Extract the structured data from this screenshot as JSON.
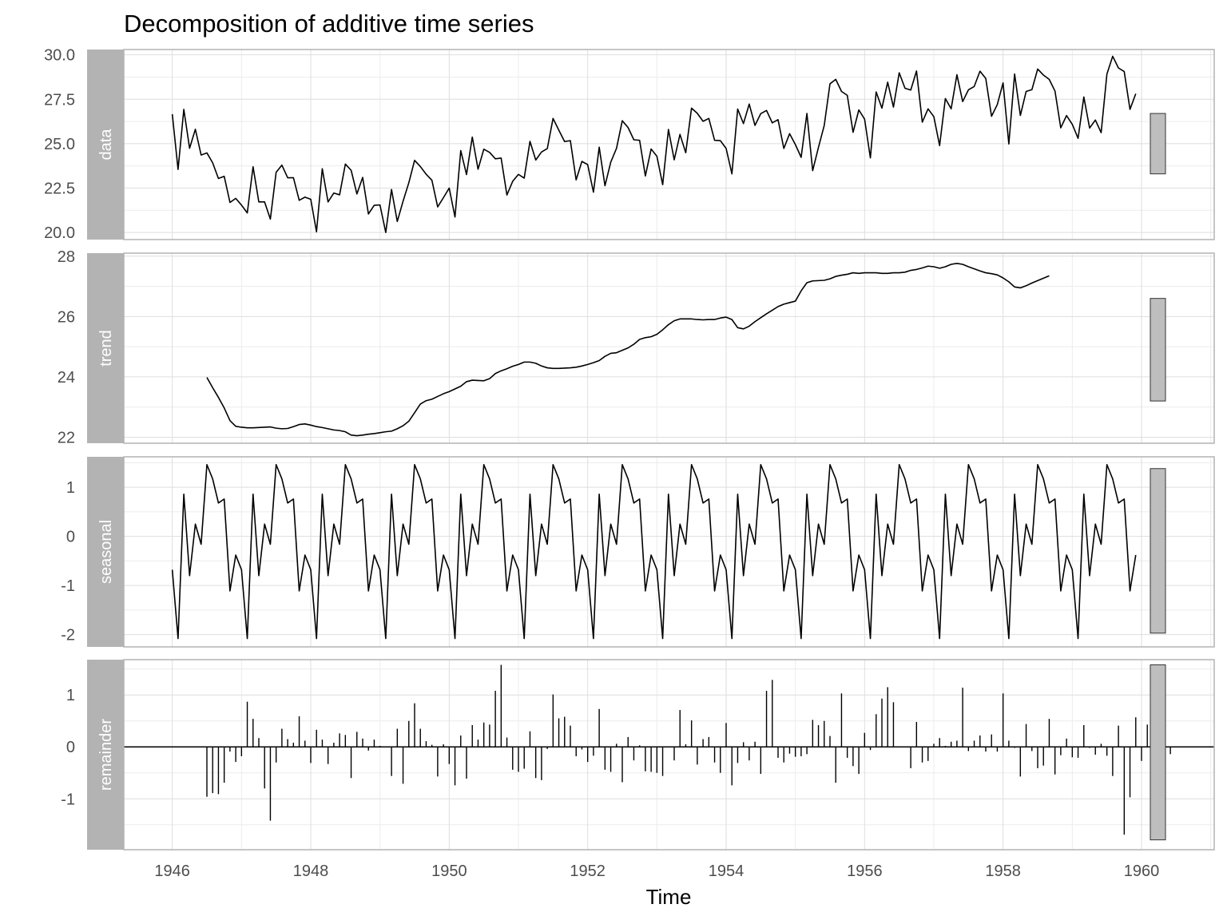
{
  "chart_data": {
    "type": "line",
    "title": "Decomposition of additive time series",
    "xlabel": "Time",
    "xlim": [
      1945.3,
      1961.05
    ],
    "x_ticks": [
      "1946",
      "1948",
      "1950",
      "1952",
      "1954",
      "1956",
      "1958",
      "1960"
    ],
    "start": 1946.0,
    "frequency": 12,
    "panels": [
      {
        "name": "data",
        "geom": "line",
        "ylim": [
          19.6,
          30.3
        ],
        "y_ticks": [
          20.0,
          22.5,
          25.0,
          27.5,
          30.0
        ],
        "y_tick_labels": [
          "20.0",
          "22.5",
          "25.0",
          "27.5",
          "30.0"
        ],
        "range_bar": [
          23.3,
          26.7
        ],
        "values": [
          26.66,
          23.55,
          26.93,
          24.74,
          25.81,
          24.36,
          24.48,
          23.92,
          23.04,
          23.16,
          21.69,
          21.92,
          21.54,
          21.1,
          23.7,
          21.72,
          21.72,
          20.75,
          23.39,
          23.79,
          23.08,
          23.08,
          21.81,
          21.99,
          21.87,
          20.04,
          23.59,
          21.72,
          22.22,
          22.12,
          23.85,
          23.5,
          22.17,
          23.1,
          21.04,
          21.53,
          21.55,
          20.0,
          22.42,
          20.62,
          21.76,
          22.8,
          24.06,
          23.71,
          23.28,
          22.94,
          21.44,
          21.96,
          22.5,
          20.87,
          24.61,
          23.26,
          25.37,
          23.56,
          24.69,
          24.51,
          24.15,
          24.19,
          22.11,
          22.88,
          23.27,
          23.06,
          25.13,
          24.08,
          24.53,
          24.72,
          26.42,
          25.76,
          25.12,
          25.17,
          22.96,
          24.0,
          23.82,
          22.27,
          24.8,
          22.63,
          23.96,
          24.74,
          26.29,
          25.91,
          25.22,
          25.19,
          23.18,
          24.7,
          24.29,
          22.69,
          25.8,
          24.09,
          25.52,
          24.49,
          27.0,
          26.71,
          26.26,
          26.42,
          25.19,
          25.17,
          24.73,
          23.3,
          26.95,
          26.13,
          27.23,
          26.03,
          26.69,
          26.87,
          26.17,
          26.35,
          24.73,
          25.56,
          24.95,
          24.23,
          26.7,
          23.48,
          24.79,
          26.02,
          28.37,
          28.62,
          27.94,
          27.72,
          25.64,
          26.9,
          26.38,
          24.2,
          27.91,
          27.0,
          28.46,
          27.06,
          28.99,
          28.12,
          28.02,
          29.09,
          26.21,
          26.96,
          26.52,
          24.89,
          27.54,
          26.96,
          28.88,
          27.37,
          28.03,
          28.22,
          29.08,
          28.67,
          26.54,
          27.2,
          28.42,
          24.98,
          28.92,
          26.59,
          27.94,
          28.04,
          29.2,
          28.86,
          28.62,
          27.96,
          25.89,
          26.58,
          26.09,
          25.3,
          27.63,
          25.88,
          26.33,
          25.62,
          28.92,
          29.92,
          29.26,
          29.06,
          26.93,
          27.81
        ]
      },
      {
        "name": "trend",
        "geom": "line",
        "ylim": [
          21.8,
          28.1
        ],
        "y_ticks": [
          22,
          24,
          26,
          28
        ],
        "y_tick_labels": [
          "22",
          "24",
          "26",
          "28"
        ],
        "range_bar": [
          23.2,
          26.6
        ],
        "values": [
          null,
          null,
          null,
          null,
          null,
          null,
          23.98,
          23.64,
          23.32,
          22.97,
          22.55,
          22.36,
          22.33,
          22.31,
          22.31,
          22.32,
          22.33,
          22.34,
          22.3,
          22.28,
          22.29,
          22.35,
          22.42,
          22.44,
          22.4,
          22.35,
          22.32,
          22.28,
          22.24,
          22.22,
          22.18,
          22.07,
          22.05,
          22.07,
          22.1,
          22.12,
          22.15,
          22.18,
          22.2,
          22.28,
          22.38,
          22.53,
          22.81,
          23.1,
          23.21,
          23.26,
          23.35,
          23.44,
          23.51,
          23.6,
          23.69,
          23.84,
          23.89,
          23.88,
          23.87,
          23.94,
          24.11,
          24.2,
          24.27,
          24.35,
          24.41,
          24.49,
          24.49,
          24.45,
          24.36,
          24.3,
          24.28,
          24.28,
          24.29,
          24.3,
          24.32,
          24.36,
          24.41,
          24.47,
          24.54,
          24.68,
          24.78,
          24.8,
          24.88,
          24.96,
          25.08,
          25.24,
          25.3,
          25.33,
          25.41,
          25.56,
          25.73,
          25.86,
          25.92,
          25.92,
          25.92,
          25.9,
          25.89,
          25.9,
          25.9,
          25.95,
          25.98,
          25.9,
          25.63,
          25.59,
          25.68,
          25.83,
          25.96,
          26.09,
          26.21,
          26.33,
          26.41,
          26.46,
          26.51,
          26.85,
          27.12,
          27.18,
          27.19,
          27.2,
          27.25,
          27.33,
          27.37,
          27.4,
          27.45,
          27.43,
          27.45,
          27.45,
          27.45,
          27.43,
          27.43,
          27.45,
          27.45,
          27.47,
          27.53,
          27.56,
          27.61,
          27.67,
          27.65,
          27.6,
          27.65,
          27.73,
          27.76,
          27.73,
          27.65,
          27.58,
          27.51,
          27.45,
          27.42,
          27.38,
          27.28,
          27.15,
          26.98,
          26.95,
          27.02,
          27.11,
          27.19,
          27.27,
          27.35,
          null,
          null,
          null,
          null,
          null,
          null
        ]
      },
      {
        "name": "seasonal",
        "geom": "line",
        "ylim": [
          -2.25,
          1.62
        ],
        "y_ticks": [
          -2,
          -1,
          0,
          1
        ],
        "y_tick_labels": [
          "-2",
          "-1",
          "0",
          "1"
        ],
        "range_bar": [
          -1.97,
          1.38
        ],
        "pattern": [
          -0.68,
          -2.08,
          0.86,
          -0.8,
          0.25,
          -0.16,
          1.46,
          1.17,
          0.68,
          0.76,
          -1.11,
          -0.38
        ]
      },
      {
        "name": "remainder",
        "geom": "bar",
        "ylim": [
          -1.98,
          1.68
        ],
        "y_ticks": [
          -1,
          0,
          1
        ],
        "y_tick_labels": [
          "-1",
          "0",
          "1"
        ],
        "range_bar": [
          -1.79,
          1.58
        ],
        "values": [
          null,
          null,
          null,
          null,
          null,
          null,
          -0.96,
          -0.89,
          -0.91,
          -0.69,
          -0.09,
          -0.29,
          -0.18,
          0.87,
          0.54,
          0.17,
          -0.8,
          -1.42,
          -0.3,
          0.35,
          0.15,
          0.08,
          0.59,
          0.12,
          -0.31,
          0.33,
          0.14,
          -0.33,
          0.08,
          0.26,
          0.23,
          -0.6,
          0.29,
          0.16,
          -0.07,
          0.14,
          0.02,
          0.01,
          -0.56,
          0.35,
          -0.71,
          0.5,
          0.84,
          0.35,
          0.11,
          0.04,
          -0.57,
          0.05,
          -0.33,
          -0.74,
          0.22,
          -0.61,
          0.42,
          0.14,
          0.47,
          0.43,
          1.08,
          1.58,
          0.18,
          -0.44,
          -0.48,
          -0.42,
          0.3,
          -0.6,
          -0.64,
          -0.04,
          1.01,
          0.55,
          0.58,
          0.41,
          -0.18,
          -0.05,
          -0.29,
          -0.17,
          0.73,
          -0.44,
          -0.48,
          0.06,
          -0.68,
          0.19,
          -0.26,
          0.03,
          -0.47,
          -0.48,
          -0.5,
          -0.56,
          0.0,
          -0.26,
          0.71,
          0.05,
          0.51,
          -0.34,
          0.15,
          0.19,
          -0.3,
          -0.5,
          0.46,
          -0.74,
          -0.31,
          0.09,
          -0.26,
          0.1,
          -0.52,
          1.08,
          1.29,
          -0.21,
          -0.3,
          -0.13,
          -0.19,
          -0.18,
          -0.14,
          0.52,
          0.42,
          0.5,
          0.21,
          -0.69,
          1.03,
          -0.21,
          -0.37,
          -0.52,
          0.27,
          -0.06,
          0.63,
          0.93,
          1.15,
          0.86,
          -0.01,
          -0.01,
          -0.41,
          0.48,
          -0.3,
          -0.27,
          0.06,
          0.17,
          0.02,
          0.1,
          0.12,
          1.14,
          -0.08,
          0.12,
          0.22,
          -0.09,
          0.24,
          -0.09,
          1.03,
          0.12,
          -0.02,
          -0.57,
          0.44,
          -0.08,
          -0.41,
          -0.36,
          0.54,
          -0.53,
          -0.16,
          0.16,
          -0.2,
          -0.21,
          0.42,
          -0.02,
          -0.15,
          0.06,
          -0.17,
          -0.56,
          0.41,
          -1.69,
          -0.97,
          0.57,
          -0.27,
          0.43,
          0.57,
          -0.36,
          0.02,
          -0.14
        ]
      }
    ]
  }
}
